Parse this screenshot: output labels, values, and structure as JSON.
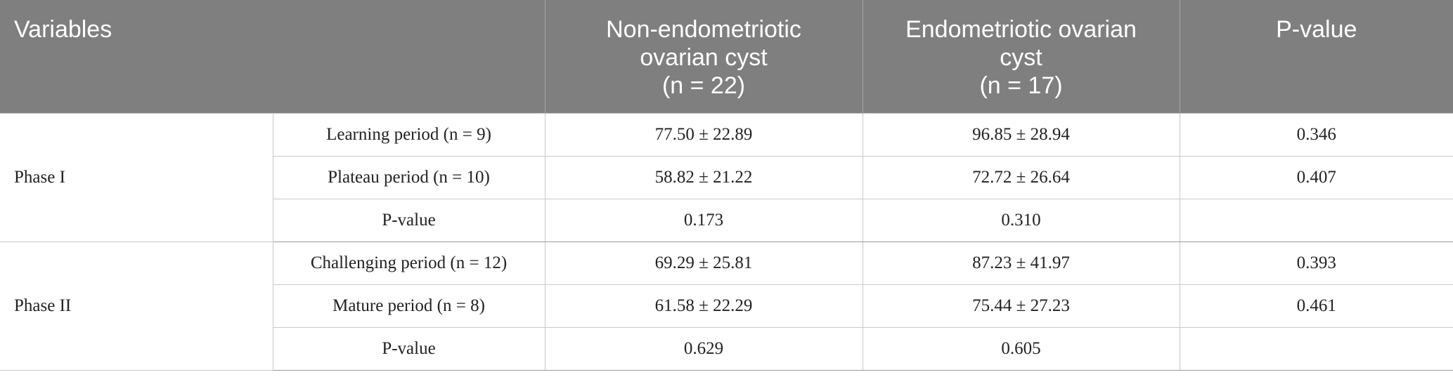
{
  "table": {
    "header": {
      "variables": "Variables",
      "columns": [
        [
          "Non-endometriotic",
          "ovarian cyst",
          "(n = 22)"
        ],
        [
          "Endometriotic ovarian",
          "cyst",
          "(n = 17)"
        ],
        [
          "P-value"
        ]
      ]
    },
    "groups": [
      {
        "label": "Phase I",
        "rows": [
          [
            "Learning period (n = 9)",
            "77.50 ± 22.89",
            "96.85 ± 28.94",
            "0.346"
          ],
          [
            "Plateau period (n = 10)",
            "58.82 ± 21.22",
            "72.72 ± 26.64",
            "0.407"
          ],
          [
            "P-value",
            "0.173",
            "0.310"
          ]
        ]
      },
      {
        "label": "Phase II",
        "rows": [
          [
            "Challenging period (n = 12)",
            "69.29 ± 25.81",
            "87.23 ± 41.97",
            "0.393"
          ],
          [
            "Mature period (n = 8)",
            "61.58 ± 22.29",
            "75.44 ± 27.23",
            "0.461"
          ],
          [
            "P-value",
            "0.629",
            "0.605"
          ]
        ]
      }
    ]
  }
}
